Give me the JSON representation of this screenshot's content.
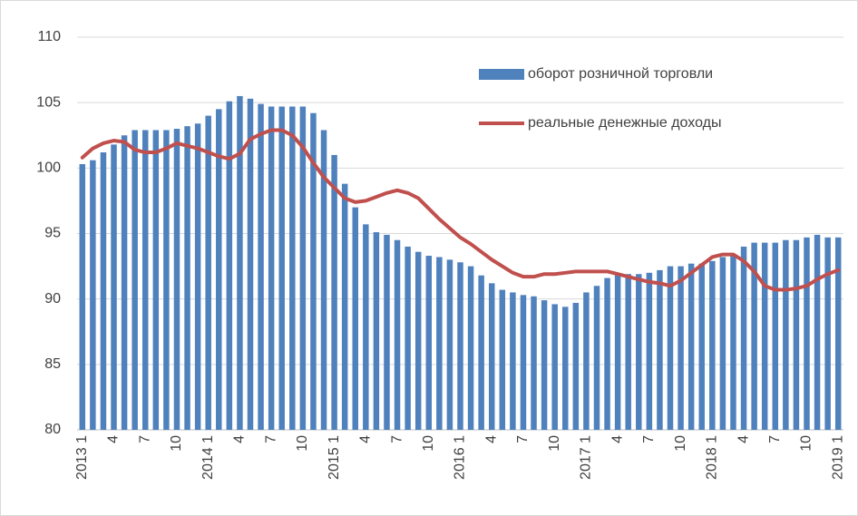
{
  "chart_data": {
    "type": "bar-line",
    "categories": [
      "2013 1",
      null,
      null,
      "4",
      null,
      null,
      "7",
      null,
      null,
      "10",
      null,
      null,
      "2014 1",
      null,
      null,
      "4",
      null,
      null,
      "7",
      null,
      null,
      "10",
      null,
      null,
      "2015 1",
      null,
      null,
      "4",
      null,
      null,
      "7",
      null,
      null,
      "10",
      null,
      null,
      "2016 1",
      null,
      null,
      "4",
      null,
      null,
      "7",
      null,
      null,
      "10",
      null,
      null,
      "2017 1",
      null,
      null,
      "4",
      null,
      null,
      "7",
      null,
      null,
      "10",
      null,
      null,
      "2018 1",
      null,
      null,
      "4",
      null,
      null,
      "7",
      null,
      null,
      "10",
      null,
      null,
      "2019 1"
    ],
    "series": [
      {
        "name": "оборот розничной торговли",
        "type": "bar",
        "color": "#4f81bd",
        "values": [
          100.3,
          100.6,
          101.2,
          101.8,
          102.5,
          102.9,
          102.9,
          102.9,
          102.9,
          103.0,
          103.2,
          103.4,
          104.0,
          104.5,
          105.1,
          105.5,
          105.3,
          104.9,
          104.7,
          104.7,
          104.7,
          104.7,
          104.2,
          102.9,
          101.0,
          98.8,
          97.0,
          95.7,
          95.1,
          94.9,
          94.5,
          94.0,
          93.6,
          93.3,
          93.2,
          93.0,
          92.8,
          92.5,
          91.8,
          91.2,
          90.7,
          90.5,
          90.3,
          90.2,
          89.9,
          89.6,
          89.4,
          89.7,
          90.5,
          91.0,
          91.6,
          91.9,
          91.9,
          91.9,
          92.0,
          92.2,
          92.5,
          92.5,
          92.7,
          92.7,
          92.9,
          93.2,
          93.4,
          94.0,
          94.3,
          94.3,
          94.3,
          94.5,
          94.5,
          94.7,
          94.9,
          94.7,
          94.7
        ]
      },
      {
        "name": "реальные денежные доходы",
        "type": "line",
        "color": "#c0504d",
        "values": [
          100.8,
          101.5,
          101.9,
          102.1,
          102.0,
          101.4,
          101.2,
          101.2,
          101.5,
          101.9,
          101.7,
          101.5,
          101.2,
          100.9,
          100.7,
          101.1,
          102.2,
          102.6,
          102.9,
          102.9,
          102.5,
          101.6,
          100.4,
          99.3,
          98.5,
          97.7,
          97.4,
          97.5,
          97.8,
          98.1,
          98.3,
          98.1,
          97.7,
          96.9,
          96.1,
          95.4,
          94.7,
          94.2,
          93.6,
          93.0,
          92.5,
          92.0,
          91.7,
          91.7,
          91.9,
          91.9,
          92.0,
          92.1,
          92.1,
          92.1,
          92.1,
          91.9,
          91.7,
          91.5,
          91.3,
          91.2,
          91.0,
          91.4,
          92.0,
          92.6,
          93.2,
          93.4,
          93.4,
          92.9,
          92.1,
          91.0,
          90.7,
          90.7,
          90.8,
          91.0,
          91.5,
          91.9,
          92.2
        ]
      }
    ],
    "ylim": [
      80,
      110
    ],
    "yticks": [
      80,
      85,
      90,
      95,
      100,
      105,
      110
    ],
    "grid": true,
    "legend": "top-right"
  }
}
